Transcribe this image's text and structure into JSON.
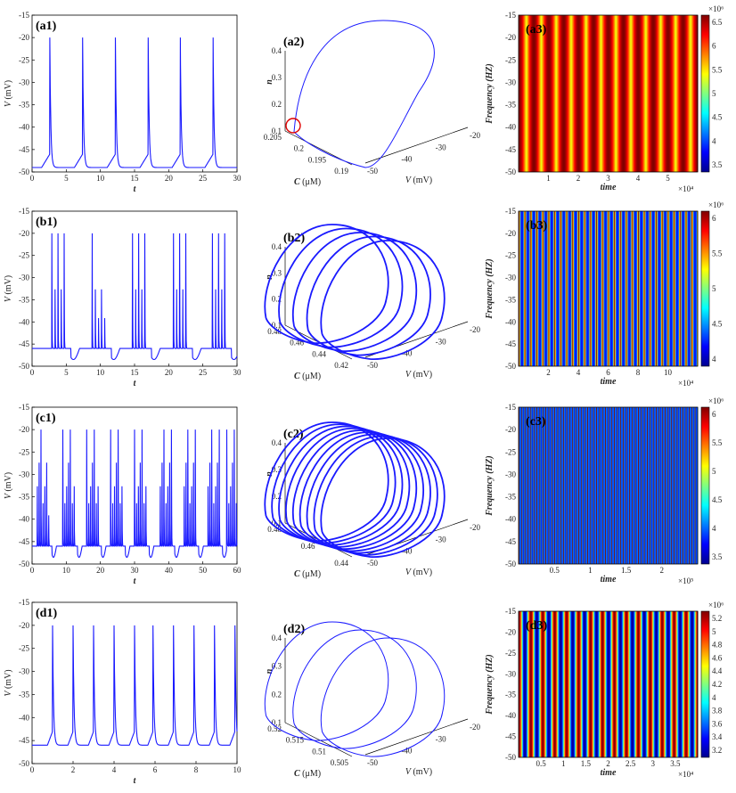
{
  "chart_data": [
    {
      "id": "a1",
      "type": "line",
      "label": "(a1)",
      "xlabel": "t",
      "ylabel": "V (mV)",
      "xlim": [
        0,
        30
      ],
      "ylim": [
        -50,
        -15
      ],
      "xticks": [
        0,
        5,
        10,
        15,
        20,
        25,
        30
      ],
      "yticks": [
        -50,
        -45,
        -40,
        -35,
        -30,
        -25,
        -20,
        -15
      ],
      "pattern": {
        "kind": "tonic",
        "spike_times": [
          2.6,
          7.4,
          12.2,
          17.0,
          21.7,
          26.5
        ],
        "baseline": -49,
        "peak": -20
      }
    },
    {
      "id": "b1",
      "type": "line",
      "label": "(b1)",
      "xlabel": "t",
      "ylabel": "V (mV)",
      "xlim": [
        0,
        30
      ],
      "ylim": [
        -50,
        -15
      ],
      "xticks": [
        0,
        5,
        10,
        15,
        20,
        25,
        30
      ],
      "yticks": [
        -50,
        -45,
        -40,
        -35,
        -30,
        -25,
        -20,
        -15
      ],
      "pattern": {
        "kind": "burst",
        "burst_starts": [
          2.9,
          8.8,
          14.7,
          20.7,
          26.4
        ],
        "spikes_per_burst": 5,
        "isi": 0.45,
        "baseline": -46,
        "trough": -48.5,
        "peak": -20
      }
    },
    {
      "id": "c1",
      "type": "line",
      "label": "(c1)",
      "xlabel": "t",
      "ylabel": "V (mV)",
      "xlim": [
        0,
        60
      ],
      "ylim": [
        -50,
        -15
      ],
      "xticks": [
        0,
        10,
        20,
        30,
        40,
        50,
        60
      ],
      "yticks": [
        -50,
        -45,
        -40,
        -35,
        -30,
        -25,
        -20,
        -15
      ],
      "pattern": {
        "kind": "burst",
        "burst_starts": [
          1.5,
          9.0,
          16.0,
          23.0,
          30.0,
          37.5,
          44.5,
          51.5,
          57.0
        ],
        "spikes_per_burst": 7,
        "isi": 0.55,
        "baseline": -46,
        "trough": -48.5,
        "peak": -20
      }
    },
    {
      "id": "d1",
      "type": "line",
      "label": "(d1)",
      "xlabel": "t",
      "ylabel": "V (mV)",
      "xlim": [
        0,
        10
      ],
      "ylim": [
        -50,
        -15
      ],
      "xticks": [
        0,
        2,
        4,
        6,
        8,
        10
      ],
      "yticks": [
        -50,
        -45,
        -40,
        -35,
        -30,
        -25,
        -20,
        -15
      ],
      "pattern": {
        "kind": "tonic",
        "spike_times": [
          1.0,
          2.0,
          3.0,
          4.0,
          5.0,
          5.9,
          6.9,
          7.9,
          8.9,
          9.9
        ],
        "baseline": -46,
        "peak": -20
      }
    },
    {
      "id": "a2",
      "type": "line3d",
      "label": "(a2)",
      "xlabel": "V (mV)",
      "ylabel": "C (μM)",
      "zlabel": "n",
      "v_ticks": [
        -50,
        -40,
        -30,
        -20
      ],
      "c_ticks": [
        "0.205",
        "0.2",
        "0.195",
        "0.19"
      ],
      "n_ticks": [
        "0.1",
        "0.2",
        "0.3",
        "0.4"
      ],
      "loops": 1,
      "marker": "red-circle"
    },
    {
      "id": "b2",
      "type": "line3d",
      "label": "(b2)",
      "xlabel": "V (mV)",
      "ylabel": "C (μM)",
      "zlabel": "n",
      "v_ticks": [
        -50,
        -40,
        -30,
        -20
      ],
      "c_ticks": [
        "0.48",
        "0.46",
        "0.44",
        "0.42"
      ],
      "n_ticks": [
        "0.1",
        "0.2",
        "0.3",
        "0.4"
      ],
      "loops": 5
    },
    {
      "id": "c2",
      "type": "line3d",
      "label": "(c2)",
      "xlabel": "V (mV)",
      "ylabel": "C (μM)",
      "zlabel": "n",
      "v_ticks": [
        -50,
        -40,
        -30,
        -20
      ],
      "c_ticks": [
        "0.48",
        "0.46",
        "0.44"
      ],
      "n_ticks": [
        "0.1",
        "0.2",
        "0.3",
        "0.4"
      ],
      "loops": 9
    },
    {
      "id": "d2",
      "type": "line3d",
      "label": "(d2)",
      "xlabel": "V (mV)",
      "ylabel": "C (μM)",
      "zlabel": "n",
      "v_ticks": [
        -50,
        -40,
        -30,
        -20
      ],
      "c_ticks": [
        "0.52",
        "0.515",
        "0.51",
        "0.505"
      ],
      "n_ticks": [
        "0.1",
        "0.2",
        "0.3",
        "0.4"
      ],
      "loops": 3
    },
    {
      "id": "a3",
      "type": "heatmap",
      "label": "(a3)",
      "xlabel": "time",
      "ylabel": "Frequency (HZ)",
      "x_ticks": [
        "1",
        "2",
        "3",
        "4",
        "5"
      ],
      "x_exponent": "×10⁴",
      "ylim": [
        -50,
        -15
      ],
      "yticks": [
        -50,
        -45,
        -40,
        -35,
        -30,
        -25,
        -20,
        -15
      ],
      "stripes": 12,
      "dominant": "red",
      "colorbar": {
        "ticks": [
          "3.5",
          "4",
          "4.5",
          "5",
          "5.5",
          "6",
          "6.5"
        ],
        "exponent": "×10⁶"
      }
    },
    {
      "id": "b3",
      "type": "heatmap",
      "label": "(b3)",
      "xlabel": "time",
      "ylabel": "Frequency (HZ)",
      "x_ticks": [
        "2",
        "4",
        "6",
        "8",
        "10"
      ],
      "x_exponent": "×10⁴",
      "ylim": [
        -50,
        -15
      ],
      "yticks": [
        -50,
        -45,
        -40,
        -35,
        -30,
        -25,
        -20,
        -15
      ],
      "stripes": 30,
      "dominant": "blue",
      "colorbar": {
        "ticks": [
          "4",
          "4.5",
          "5",
          "5.5",
          "6"
        ],
        "exponent": "×10⁶"
      }
    },
    {
      "id": "c3",
      "type": "heatmap",
      "label": "(c3)",
      "xlabel": "time",
      "ylabel": "Frequency (HZ)",
      "x_ticks": [
        "0.5",
        "1",
        "1.5",
        "2"
      ],
      "x_exponent": "×10⁵",
      "ylim": [
        -50,
        -15
      ],
      "yticks": [
        -50,
        -45,
        -40,
        -35,
        -30,
        -25,
        -20,
        -15
      ],
      "stripes": 60,
      "dominant": "blue",
      "colorbar": {
        "ticks": [
          "3.5",
          "4",
          "4.5",
          "5",
          "5.5",
          "6"
        ],
        "exponent": "×10⁶"
      }
    },
    {
      "id": "d3",
      "type": "heatmap",
      "label": "(d3)",
      "xlabel": "time",
      "ylabel": "Frequency (HZ)",
      "x_ticks": [
        "0.5",
        "1",
        "1.5",
        "2",
        "2.5",
        "3",
        "3.5"
      ],
      "x_exponent": "×10⁴",
      "ylim": [
        -50,
        -15
      ],
      "yticks": [
        -50,
        -45,
        -40,
        -35,
        -30,
        -25,
        -20,
        -15
      ],
      "stripes": 15,
      "dominant": "mixed",
      "colorbar": {
        "ticks": [
          "3.2",
          "3.4",
          "3.6",
          "3.8",
          "4",
          "4.2",
          "4.4",
          "4.6",
          "4.8",
          "5",
          "5.2"
        ],
        "exponent": "×10⁶"
      }
    }
  ]
}
